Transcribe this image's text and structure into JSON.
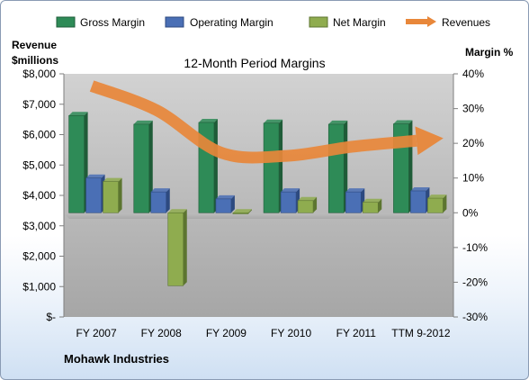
{
  "chart_data": {
    "type": "bar",
    "title": "12-Month Period Margins",
    "company": "Mohawk Industries",
    "left_axis_label_line1": "Revenue",
    "left_axis_label_line2": "$millions",
    "right_axis_label": "Margin %",
    "categories": [
      "FY 2007",
      "FY 2008",
      "FY 2009",
      "FY 2010",
      "FY 2011",
      "TTM 9-2012"
    ],
    "left_ticks": [
      "$-",
      "$1,000",
      "$2,000",
      "$3,000",
      "$4,000",
      "$5,000",
      "$6,000",
      "$7,000",
      "$8,000"
    ],
    "right_ticks": [
      "-30%",
      "-20%",
      "-10%",
      "0%",
      "10%",
      "20%",
      "30%",
      "40%"
    ],
    "ylim_left": [
      0,
      8000
    ],
    "ylim_right": [
      -30,
      40
    ],
    "legend_position": "top",
    "grid": false,
    "series": [
      {
        "name": "Gross Margin",
        "axis": "right",
        "kind": "bar",
        "values": [
          28.0,
          25.5,
          26.0,
          25.8,
          25.5,
          25.6
        ]
      },
      {
        "name": "Operating Margin",
        "axis": "right",
        "kind": "bar",
        "values": [
          10.0,
          6.0,
          4.0,
          6.0,
          6.0,
          6.3
        ]
      },
      {
        "name": "Net Margin",
        "axis": "right",
        "kind": "bar",
        "values": [
          9.0,
          -21.0,
          -0.3,
          3.5,
          3.0,
          4.2
        ]
      },
      {
        "name": "Revenues",
        "axis": "left",
        "kind": "line",
        "values": [
          7600,
          6800,
          5400,
          5300,
          5600,
          5800
        ]
      }
    ],
    "colors": {
      "gross": "#2e8b57",
      "gross_dark": "#1f5c38",
      "operating": "#4a6fb5",
      "operating_dark": "#2d4a80",
      "net": "#8fac4f",
      "net_dark": "#5c7530",
      "revenues": "#e8873a",
      "wall_top": "#cccccc",
      "wall_bottom": "#a9a9a9",
      "floor": "#c0c0c0"
    }
  }
}
